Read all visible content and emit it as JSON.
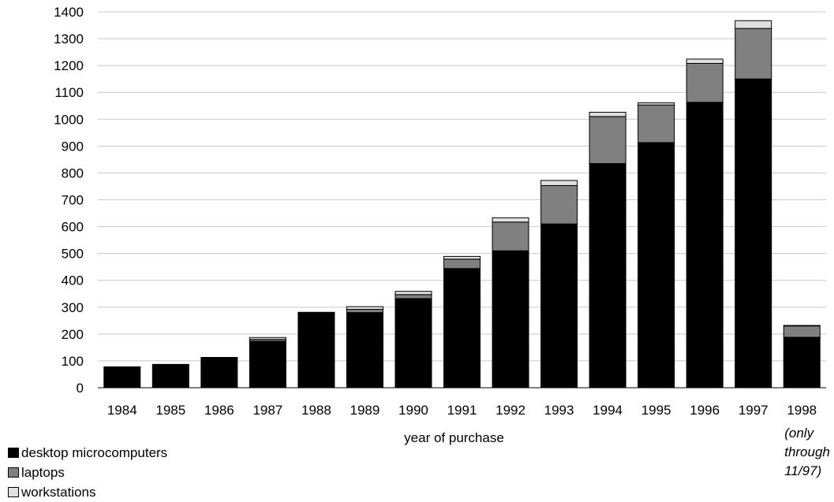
{
  "chart_data": {
    "type": "bar",
    "stacked": true,
    "categories": [
      "1984",
      "1985",
      "1986",
      "1987",
      "1988",
      "1989",
      "1990",
      "1991",
      "1992",
      "1993",
      "1994",
      "1995",
      "1996",
      "1997",
      "1998"
    ],
    "category_note": "(only through 11/97)",
    "series": [
      {
        "name": "desktop microcomputers",
        "color": "#000000",
        "values": [
          78,
          87,
          113,
          173,
          278,
          280,
          332,
          444,
          510,
          610,
          835,
          913,
          1063,
          1150,
          188
        ]
      },
      {
        "name": "laptops",
        "color": "#808080",
        "values": [
          0,
          0,
          0,
          7,
          2,
          12,
          15,
          35,
          107,
          143,
          175,
          140,
          145,
          188,
          42
        ]
      },
      {
        "name": "workstations",
        "color": "#e0e0e0",
        "values": [
          0,
          0,
          0,
          7,
          1,
          10,
          12,
          10,
          16,
          19,
          16,
          8,
          16,
          29,
          2
        ]
      }
    ],
    "xlabel": "year of purchase",
    "ylabel": "",
    "ylim": [
      0,
      1400
    ],
    "yticks": [
      0,
      100,
      200,
      300,
      400,
      500,
      600,
      700,
      800,
      900,
      1000,
      1100,
      1200,
      1300,
      1400
    ],
    "grid": true,
    "legend_position": "bottom-left"
  }
}
